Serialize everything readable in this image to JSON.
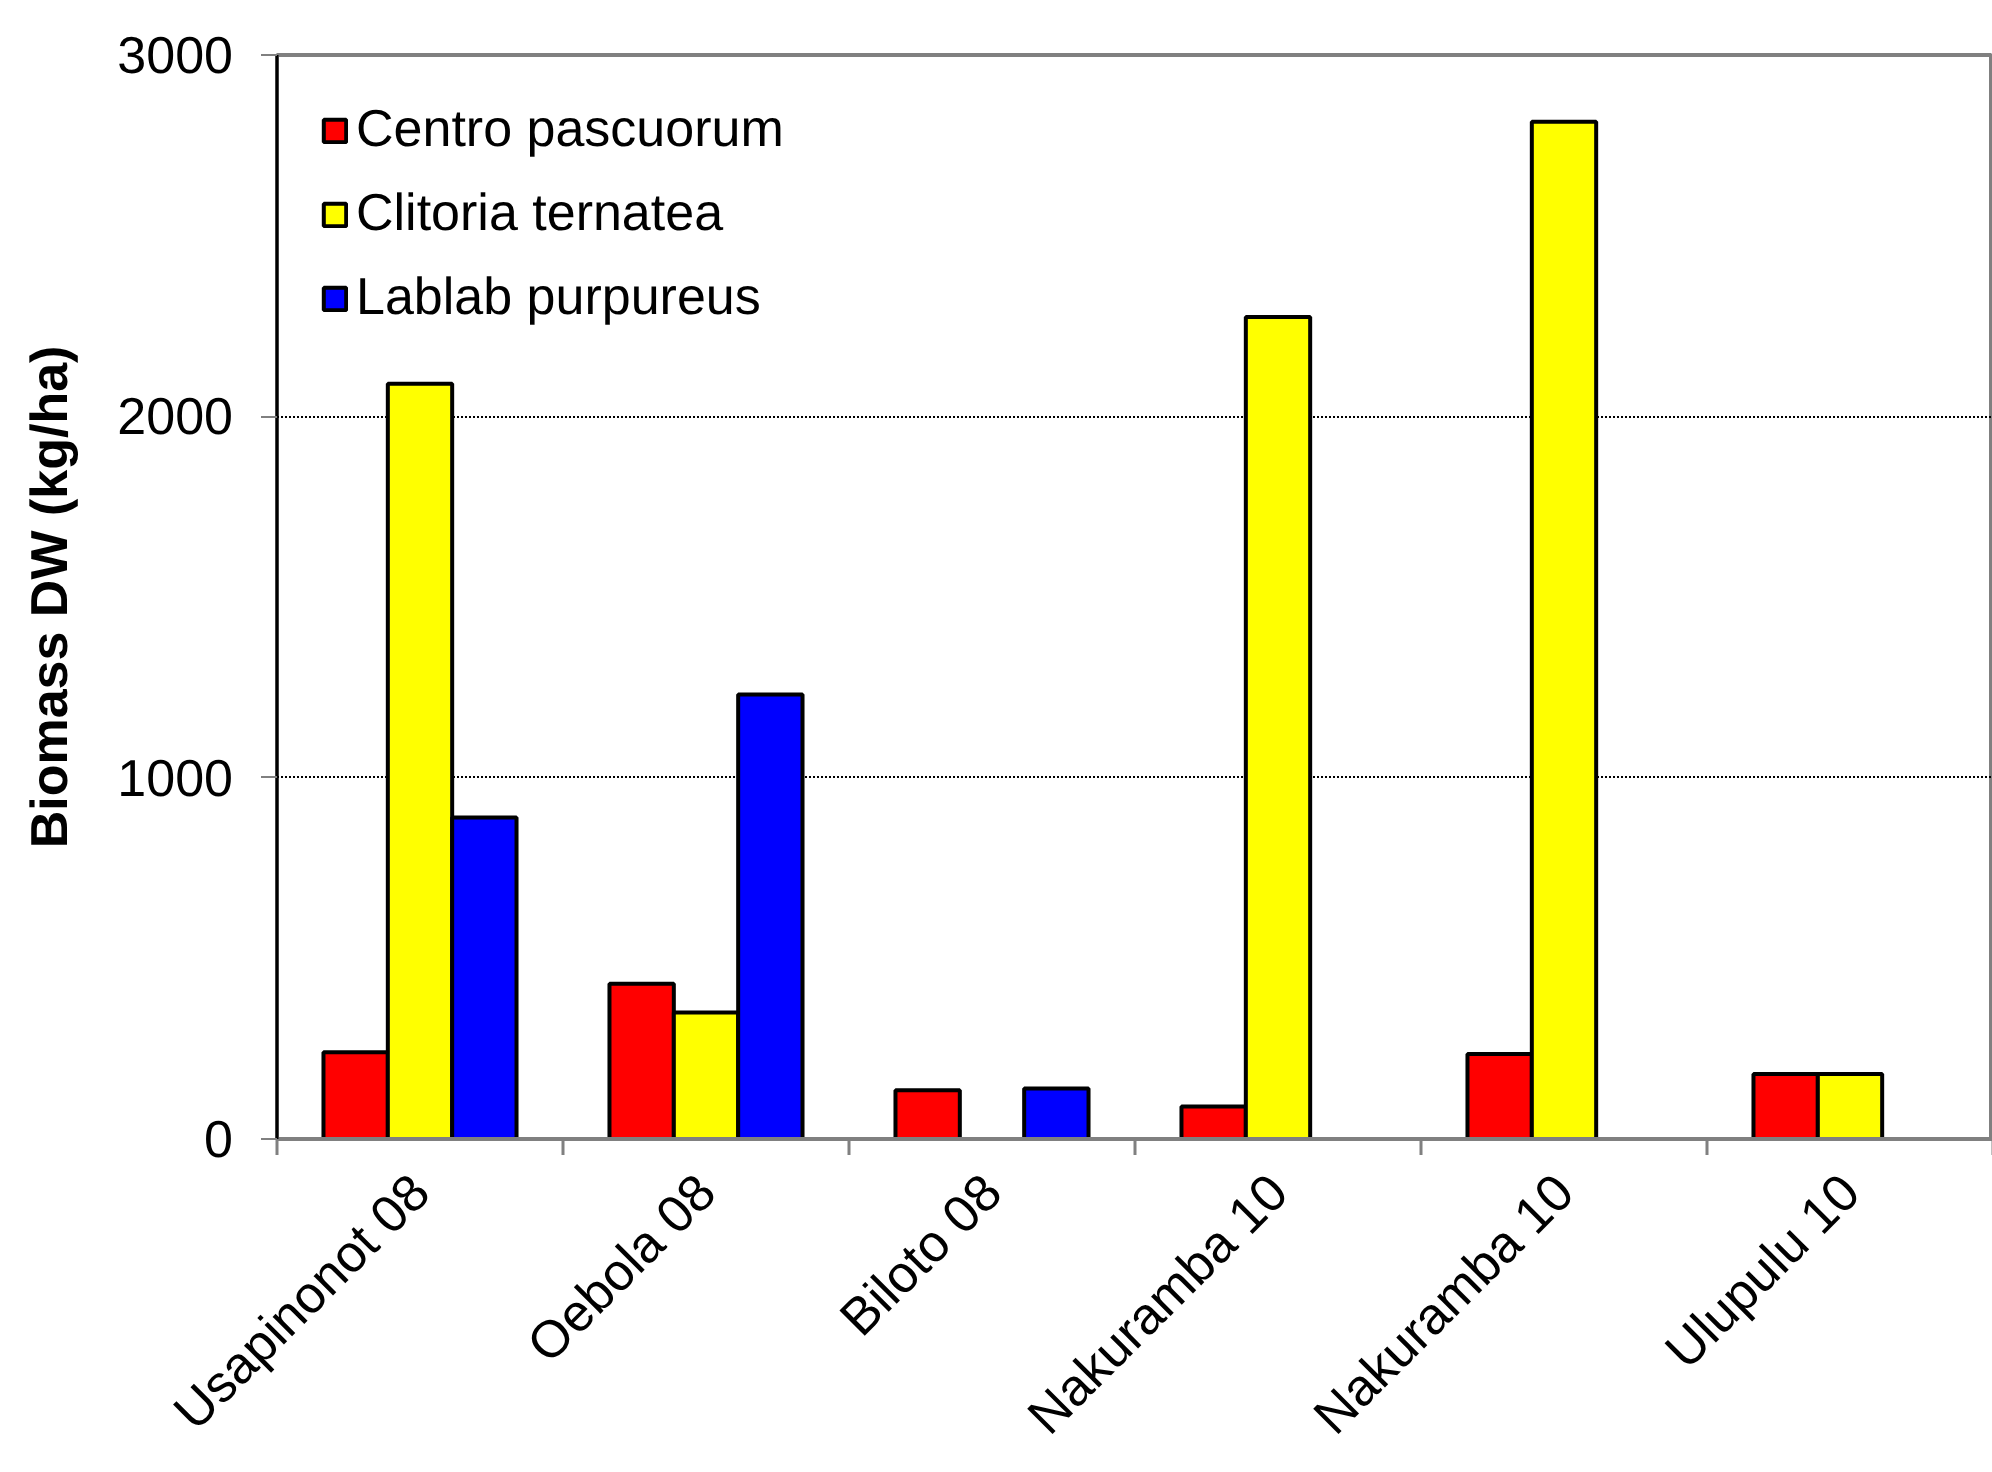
{
  "chart_data": {
    "type": "bar",
    "ylabel": "Biomass DW (kg/ha)",
    "categories": [
      "Usapinonot 08",
      "Oebola 08",
      "Biloto 08",
      "Nakuramba 10",
      "Nakuramba 10",
      "Ulupulu 10"
    ],
    "series": [
      {
        "name": "Centro pascuorum",
        "color": "#ff0000",
        "values": [
          240,
          430,
          135,
          90,
          235,
          180
        ]
      },
      {
        "name": "Clitoria ternatea",
        "color": "#ffff00",
        "values": [
          2090,
          350,
          null,
          2275,
          2815,
          180
        ]
      },
      {
        "name": "Lablab purpureus",
        "color": "#0000ff",
        "values": [
          890,
          1230,
          140,
          null,
          null,
          null
        ]
      }
    ],
    "ylim": [
      0,
      3000
    ],
    "yticks": [
      0,
      1000,
      2000,
      3000
    ],
    "grid": "y",
    "legend": "top left"
  }
}
